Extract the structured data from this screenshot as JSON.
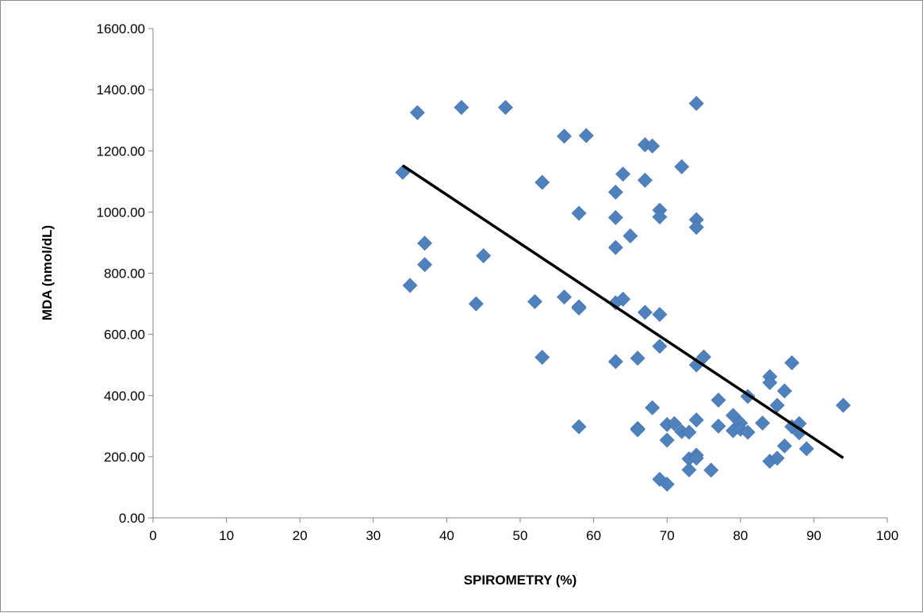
{
  "chart_data": {
    "type": "scatter",
    "title": "",
    "xlabel": "SPIROMETRY (%)",
    "ylabel": "MDA (nmol/dL)",
    "xlim": [
      0,
      100
    ],
    "ylim": [
      0,
      1600
    ],
    "x_ticks": [
      "0",
      "10",
      "20",
      "30",
      "40",
      "50",
      "60",
      "70",
      "80",
      "90",
      "100"
    ],
    "y_ticks": [
      "0.00",
      "200.00",
      "400.00",
      "600.00",
      "800.00",
      "1000.00",
      "1200.00",
      "1400.00",
      "1600.00"
    ],
    "grid": false,
    "legend": "none",
    "marker_color": "#4F81BD",
    "trendline_color": "#000000",
    "trendline": {
      "x": [
        34,
        94
      ],
      "y": [
        1152,
        196
      ]
    },
    "points": [
      {
        "x": 34,
        "y": 1130
      },
      {
        "x": 35,
        "y": 760
      },
      {
        "x": 36,
        "y": 1325
      },
      {
        "x": 37,
        "y": 898
      },
      {
        "x": 37,
        "y": 828
      },
      {
        "x": 42,
        "y": 1342
      },
      {
        "x": 44,
        "y": 700
      },
      {
        "x": 45,
        "y": 857
      },
      {
        "x": 48,
        "y": 1342
      },
      {
        "x": 52,
        "y": 707
      },
      {
        "x": 53,
        "y": 1097
      },
      {
        "x": 53,
        "y": 525
      },
      {
        "x": 56,
        "y": 1248
      },
      {
        "x": 56,
        "y": 722
      },
      {
        "x": 58,
        "y": 996
      },
      {
        "x": 58,
        "y": 690
      },
      {
        "x": 58,
        "y": 686
      },
      {
        "x": 58,
        "y": 298
      },
      {
        "x": 59,
        "y": 1250
      },
      {
        "x": 63,
        "y": 1065
      },
      {
        "x": 63,
        "y": 982
      },
      {
        "x": 63,
        "y": 884
      },
      {
        "x": 63,
        "y": 703
      },
      {
        "x": 63,
        "y": 511
      },
      {
        "x": 64,
        "y": 1124
      },
      {
        "x": 64,
        "y": 715
      },
      {
        "x": 65,
        "y": 922
      },
      {
        "x": 66,
        "y": 522
      },
      {
        "x": 66,
        "y": 292
      },
      {
        "x": 66,
        "y": 288
      },
      {
        "x": 67,
        "y": 1220
      },
      {
        "x": 67,
        "y": 1104
      },
      {
        "x": 67,
        "y": 672
      },
      {
        "x": 68,
        "y": 1216
      },
      {
        "x": 68,
        "y": 360
      },
      {
        "x": 69,
        "y": 1006
      },
      {
        "x": 69,
        "y": 984
      },
      {
        "x": 69,
        "y": 665
      },
      {
        "x": 69,
        "y": 561
      },
      {
        "x": 69,
        "y": 126
      },
      {
        "x": 70,
        "y": 305
      },
      {
        "x": 70,
        "y": 254
      },
      {
        "x": 70,
        "y": 110
      },
      {
        "x": 71,
        "y": 308
      },
      {
        "x": 72,
        "y": 1148
      },
      {
        "x": 72,
        "y": 282
      },
      {
        "x": 73,
        "y": 280
      },
      {
        "x": 73,
        "y": 193
      },
      {
        "x": 73,
        "y": 157
      },
      {
        "x": 74,
        "y": 1355
      },
      {
        "x": 74,
        "y": 975
      },
      {
        "x": 74,
        "y": 950
      },
      {
        "x": 74,
        "y": 500
      },
      {
        "x": 74,
        "y": 320
      },
      {
        "x": 74,
        "y": 205
      },
      {
        "x": 74,
        "y": 195
      },
      {
        "x": 75,
        "y": 526
      },
      {
        "x": 76,
        "y": 156
      },
      {
        "x": 77,
        "y": 385
      },
      {
        "x": 77,
        "y": 300
      },
      {
        "x": 79,
        "y": 335
      },
      {
        "x": 79,
        "y": 285
      },
      {
        "x": 80,
        "y": 310
      },
      {
        "x": 80,
        "y": 290
      },
      {
        "x": 81,
        "y": 397
      },
      {
        "x": 81,
        "y": 280
      },
      {
        "x": 83,
        "y": 310
      },
      {
        "x": 84,
        "y": 462
      },
      {
        "x": 84,
        "y": 442
      },
      {
        "x": 84,
        "y": 185
      },
      {
        "x": 85,
        "y": 368
      },
      {
        "x": 85,
        "y": 195
      },
      {
        "x": 86,
        "y": 415
      },
      {
        "x": 86,
        "y": 235
      },
      {
        "x": 87,
        "y": 507
      },
      {
        "x": 87,
        "y": 298
      },
      {
        "x": 88,
        "y": 308
      },
      {
        "x": 88,
        "y": 278
      },
      {
        "x": 89,
        "y": 226
      },
      {
        "x": 94,
        "y": 368
      }
    ]
  }
}
